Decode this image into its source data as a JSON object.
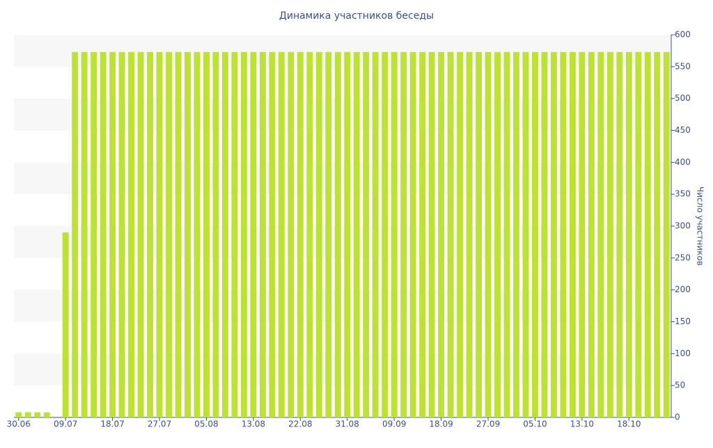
{
  "chart_data": {
    "type": "bar",
    "title": "Динамика участников беседы",
    "y_axis_label": "Число участников",
    "categories": [
      "30.06",
      null,
      null,
      null,
      null,
      "09.07",
      null,
      null,
      null,
      null,
      "18.07",
      null,
      null,
      null,
      null,
      "27.07",
      null,
      null,
      null,
      null,
      "05.08",
      null,
      null,
      null,
      null,
      "13.08",
      null,
      null,
      null,
      null,
      "22.08",
      null,
      null,
      null,
      null,
      "31.08",
      null,
      null,
      null,
      null,
      "09.09",
      null,
      null,
      null,
      null,
      "18.09",
      null,
      null,
      null,
      null,
      "27.09",
      null,
      null,
      null,
      null,
      "05.10",
      null,
      null,
      null,
      null,
      "13.10",
      null,
      null,
      null,
      null,
      "18.10",
      null,
      null,
      null,
      null
    ],
    "values": [
      8,
      8,
      8,
      8,
      0,
      290,
      573,
      573,
      573,
      573,
      573,
      573,
      573,
      573,
      573,
      573,
      573,
      573,
      573,
      573,
      573,
      573,
      573,
      573,
      573,
      573,
      573,
      573,
      573,
      573,
      573,
      573,
      573,
      573,
      573,
      573,
      573,
      573,
      573,
      573,
      573,
      573,
      573,
      573,
      573,
      573,
      573,
      573,
      573,
      573,
      573,
      573,
      573,
      573,
      573,
      573,
      573,
      573,
      573,
      573,
      573,
      573,
      573,
      573,
      573,
      573,
      573,
      573,
      573,
      573
    ],
    "color": "#bde234",
    "ylim": [
      0,
      600
    ],
    "yticks": [
      0,
      50,
      100,
      150,
      200,
      250,
      300,
      350,
      400,
      450,
      500,
      550,
      600
    ],
    "grid": "bands",
    "band_color": "#f7f7f7",
    "y_axis_side": "right"
  }
}
